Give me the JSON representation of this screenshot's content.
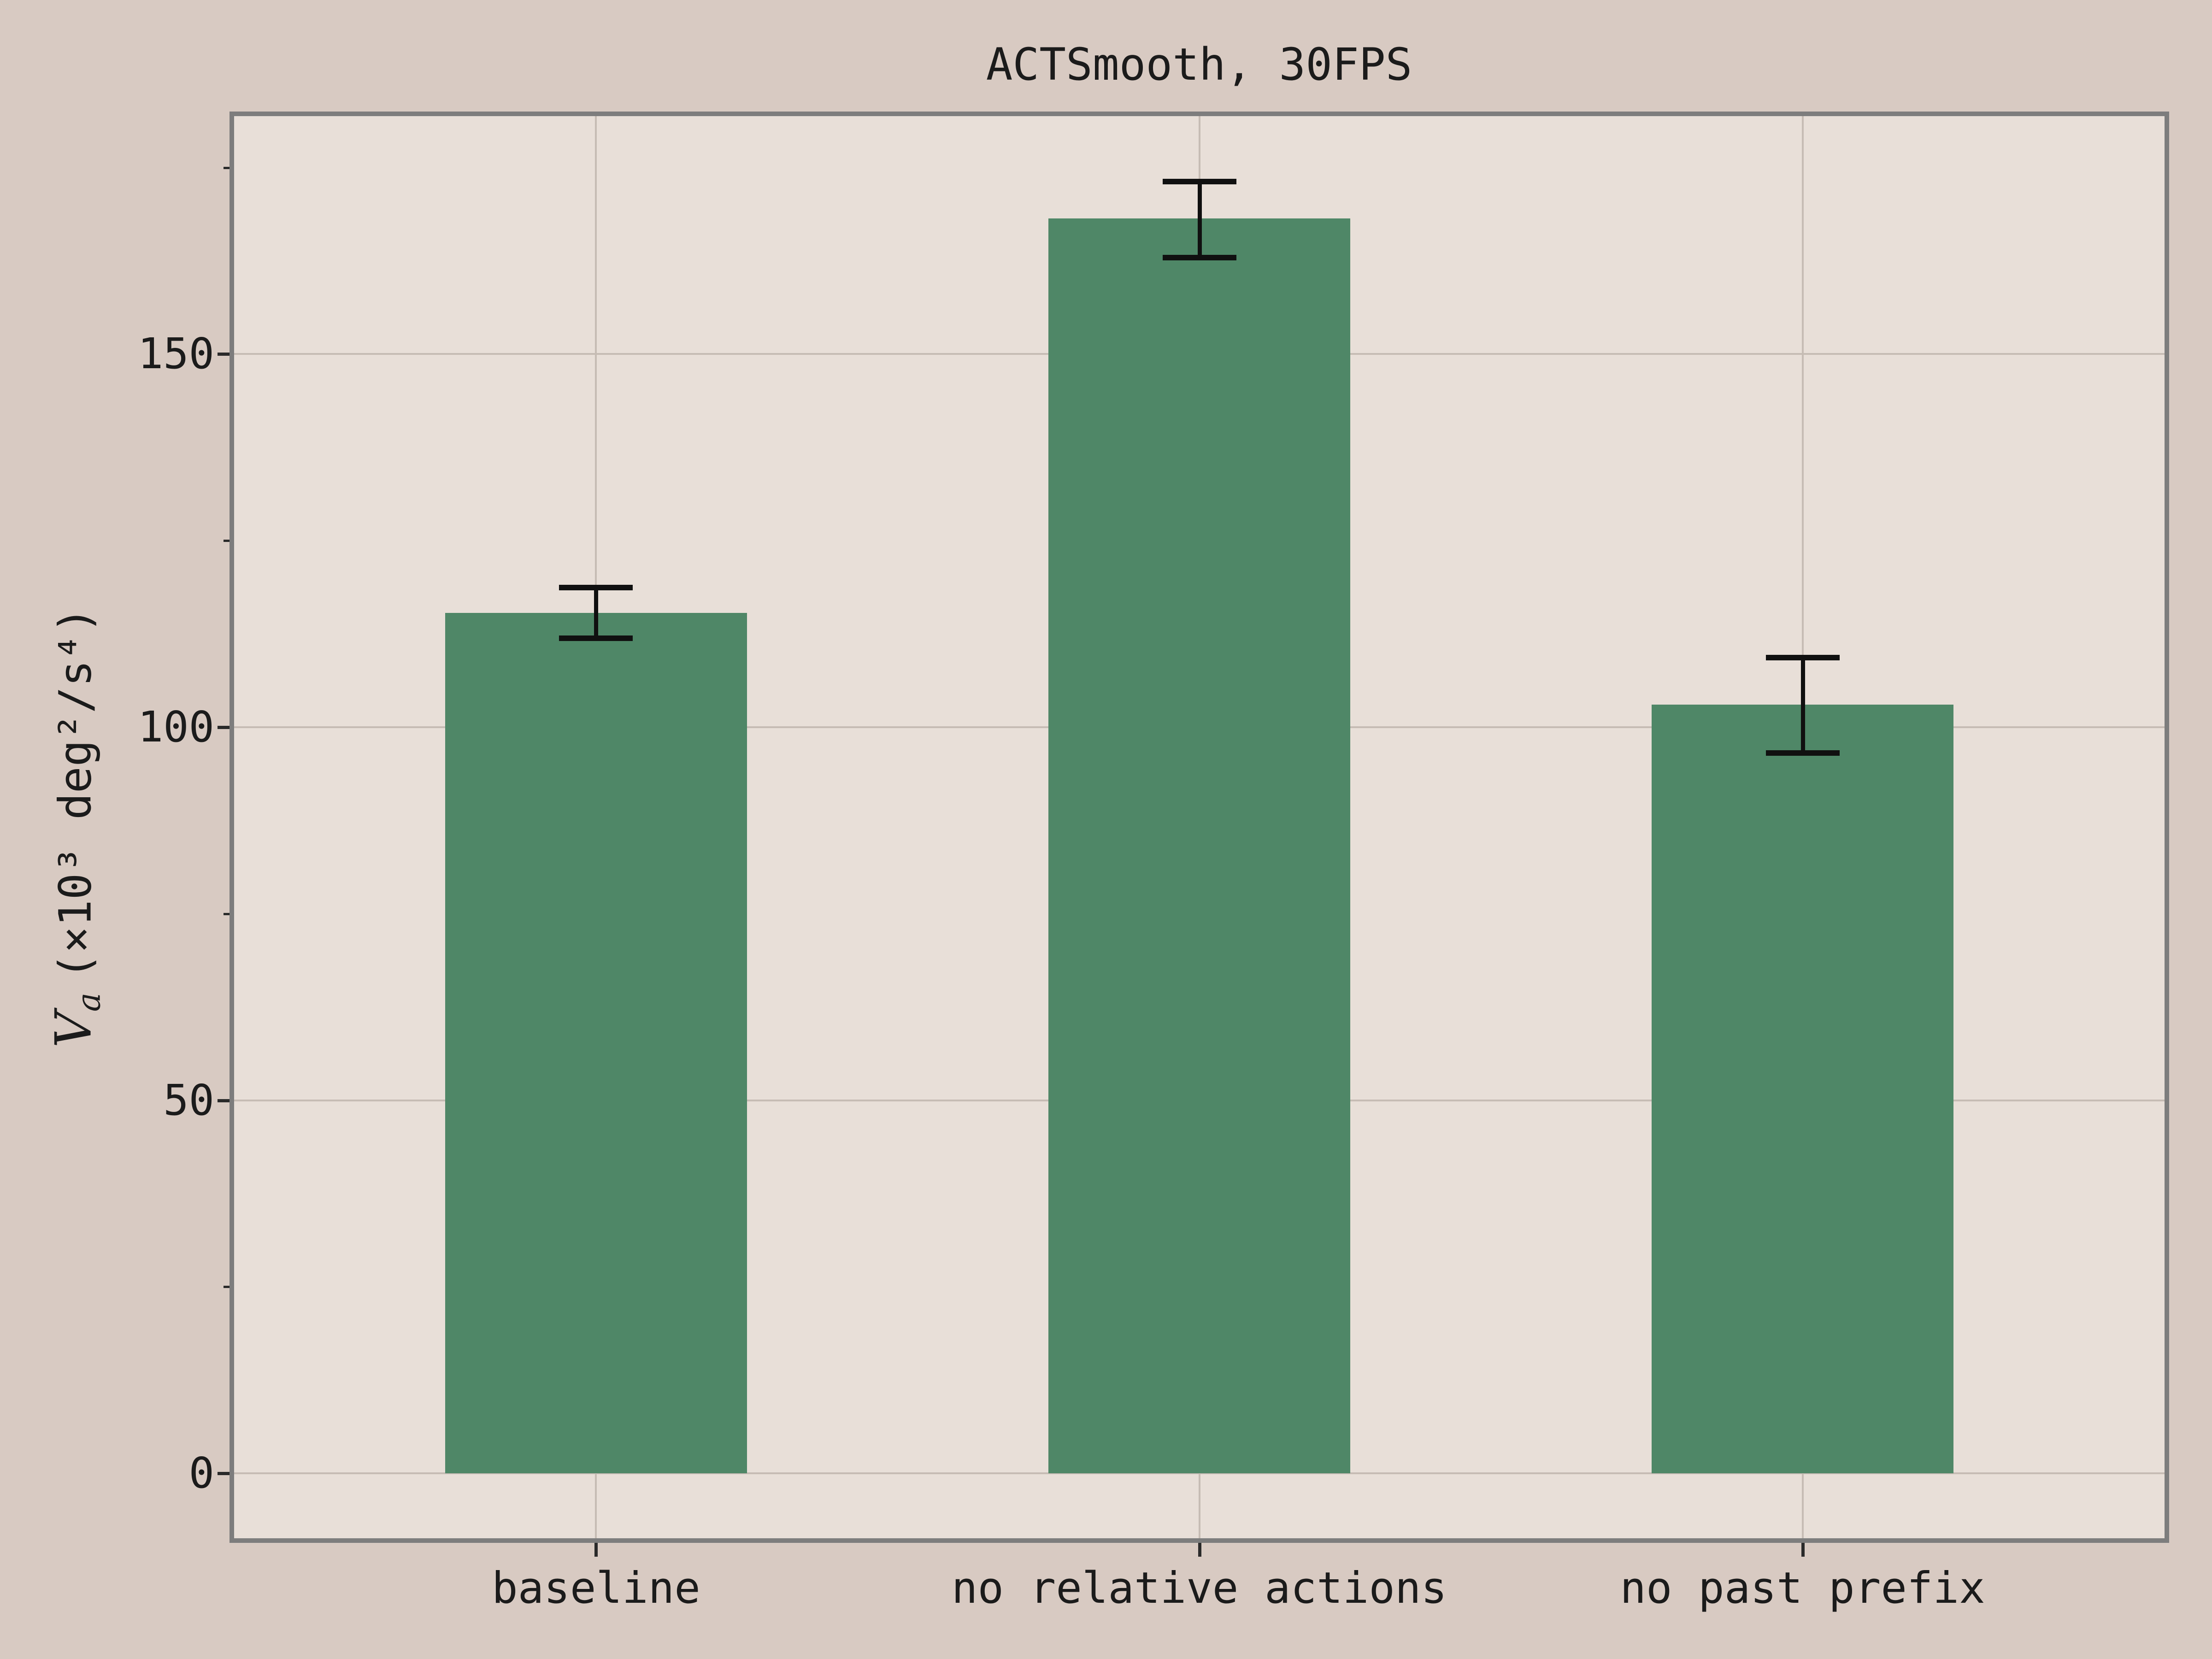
{
  "chart_data": {
    "type": "bar",
    "title": "ACTSmooth, 30FPS",
    "categories": [
      "baseline",
      "no relative actions",
      "no past prefix"
    ],
    "values": [
      115.3,
      168.2,
      103.0
    ],
    "error_bars": {
      "low": [
        112.0,
        163.0,
        96.6
      ],
      "high": [
        118.8,
        173.2,
        109.4
      ]
    },
    "ylabel": "𝒱ₐ (×10³ deg²/s⁴)",
    "ylabel_parts": {
      "symbol": "V",
      "subscript": "a",
      "units": "(×10³ deg²/s⁴)"
    },
    "xlabel": "",
    "yticks": [
      0,
      50,
      100,
      150
    ],
    "yticks_minor": [
      25,
      75,
      125,
      175
    ],
    "ylim": [
      -8.7,
      181.9
    ],
    "xlim": [
      -0.6,
      2.6
    ],
    "bar_width_units": 0.5,
    "grid": true,
    "legend": null
  },
  "style": {
    "background": "#d8cac2",
    "plot_background": "#e8dfd8",
    "bar_color": "#4f8767",
    "frame_color": "#7d7d7d",
    "grid_color": "#c6bcb4",
    "tick_color": "#2a2a2a",
    "text_color": "#1b1b1b",
    "error_color": "#101010"
  }
}
